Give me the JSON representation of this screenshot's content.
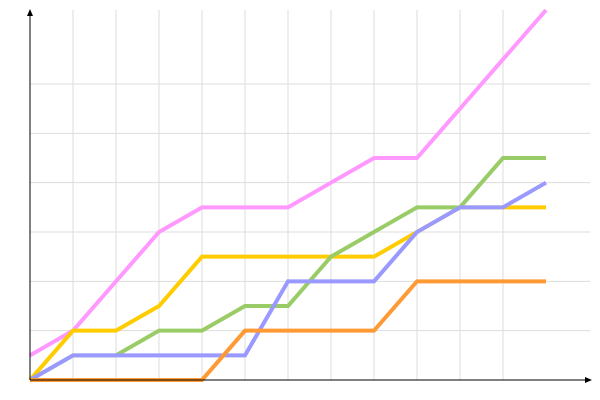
{
  "chart_data": {
    "type": "line",
    "title": "",
    "xlabel": "",
    "ylabel": "",
    "x": [
      0,
      1,
      2,
      3,
      4,
      5,
      6,
      7,
      8,
      9,
      10,
      11,
      12
    ],
    "xlim": [
      0,
      13
    ],
    "ylim": [
      0,
      7.5
    ],
    "grid": true,
    "legend": "none",
    "series": [
      {
        "color": "#ff99ff",
        "values": [
          0.5,
          1,
          2,
          3,
          3.5,
          3.5,
          3.5,
          4,
          4.5,
          4.5,
          5.5,
          6.5,
          7.5
        ]
      },
      {
        "color": "#ffcc00",
        "values": [
          0,
          1,
          1,
          1.5,
          2.5,
          2.5,
          2.5,
          2.5,
          2.5,
          3,
          3.5,
          3.5,
          3.5
        ]
      },
      {
        "color": "#99cc66",
        "values": [
          0,
          0.5,
          0.5,
          1,
          1,
          1.5,
          1.5,
          2.5,
          3,
          3.5,
          3.5,
          4.5,
          4.5
        ]
      },
      {
        "color": "#9999ff",
        "values": [
          0,
          0.5,
          0.5,
          0.5,
          0.5,
          0.5,
          2,
          2,
          2,
          3,
          3.5,
          3.5,
          4
        ]
      },
      {
        "color": "#ff9933",
        "values": [
          0,
          0,
          0,
          0,
          0,
          1,
          1,
          1,
          1,
          2,
          2,
          2,
          2
        ]
      }
    ]
  }
}
